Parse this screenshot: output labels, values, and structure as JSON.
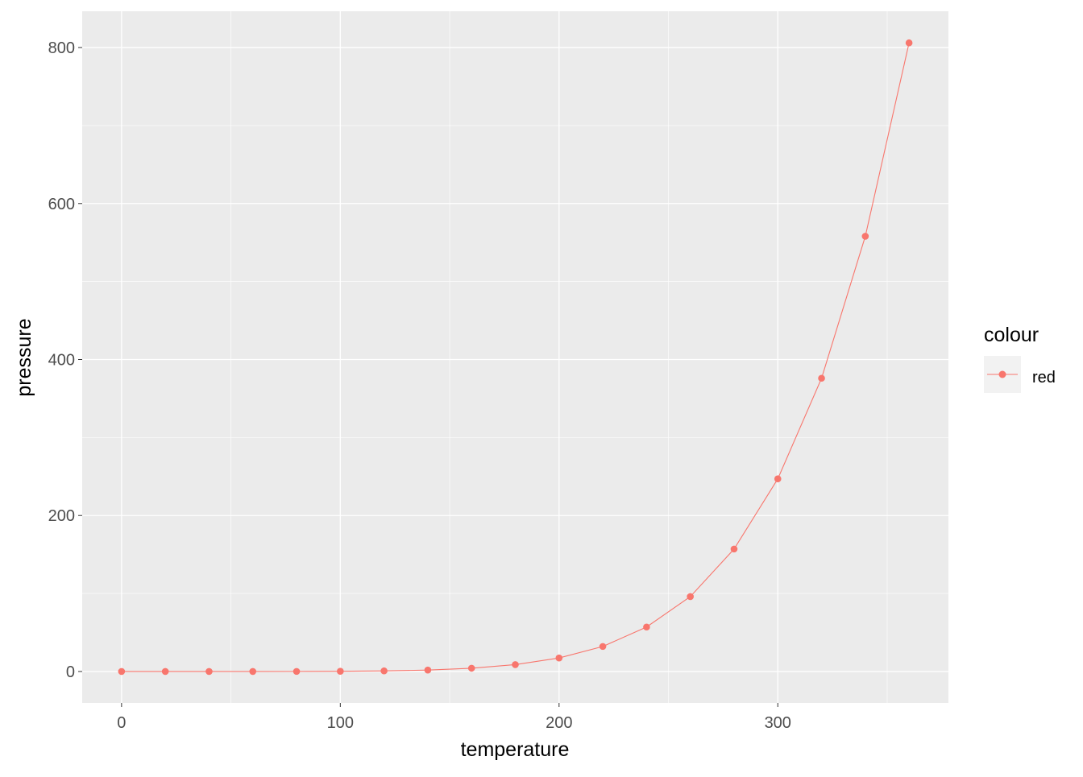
{
  "chart_data": {
    "type": "line",
    "xlabel": "temperature",
    "ylabel": "pressure",
    "x": [
      0,
      20,
      40,
      60,
      80,
      100,
      120,
      140,
      160,
      180,
      200,
      220,
      240,
      260,
      280,
      300,
      320,
      340,
      360
    ],
    "series": [
      {
        "name": "red",
        "color": "#F8766D",
        "values": [
          0.0002,
          0.0012,
          0.006,
          0.03,
          0.09,
          0.27,
          0.75,
          1.85,
          4.2,
          8.8,
          17.3,
          32.1,
          57,
          96,
          157,
          247,
          376,
          558,
          806
        ]
      }
    ],
    "xlim": [
      -18,
      378
    ],
    "ylim": [
      -40.3,
      846.5
    ],
    "xticks": [
      0,
      100,
      200,
      300
    ],
    "yticks": [
      0,
      200,
      400,
      600,
      800
    ],
    "xminor": [
      50,
      150,
      250,
      350
    ],
    "yminor": [
      100,
      300,
      500,
      700
    ],
    "grid": true,
    "panel_background": "#EBEBEB",
    "legend": {
      "title": "colour",
      "entries": [
        "red"
      ],
      "placement": "right"
    }
  }
}
